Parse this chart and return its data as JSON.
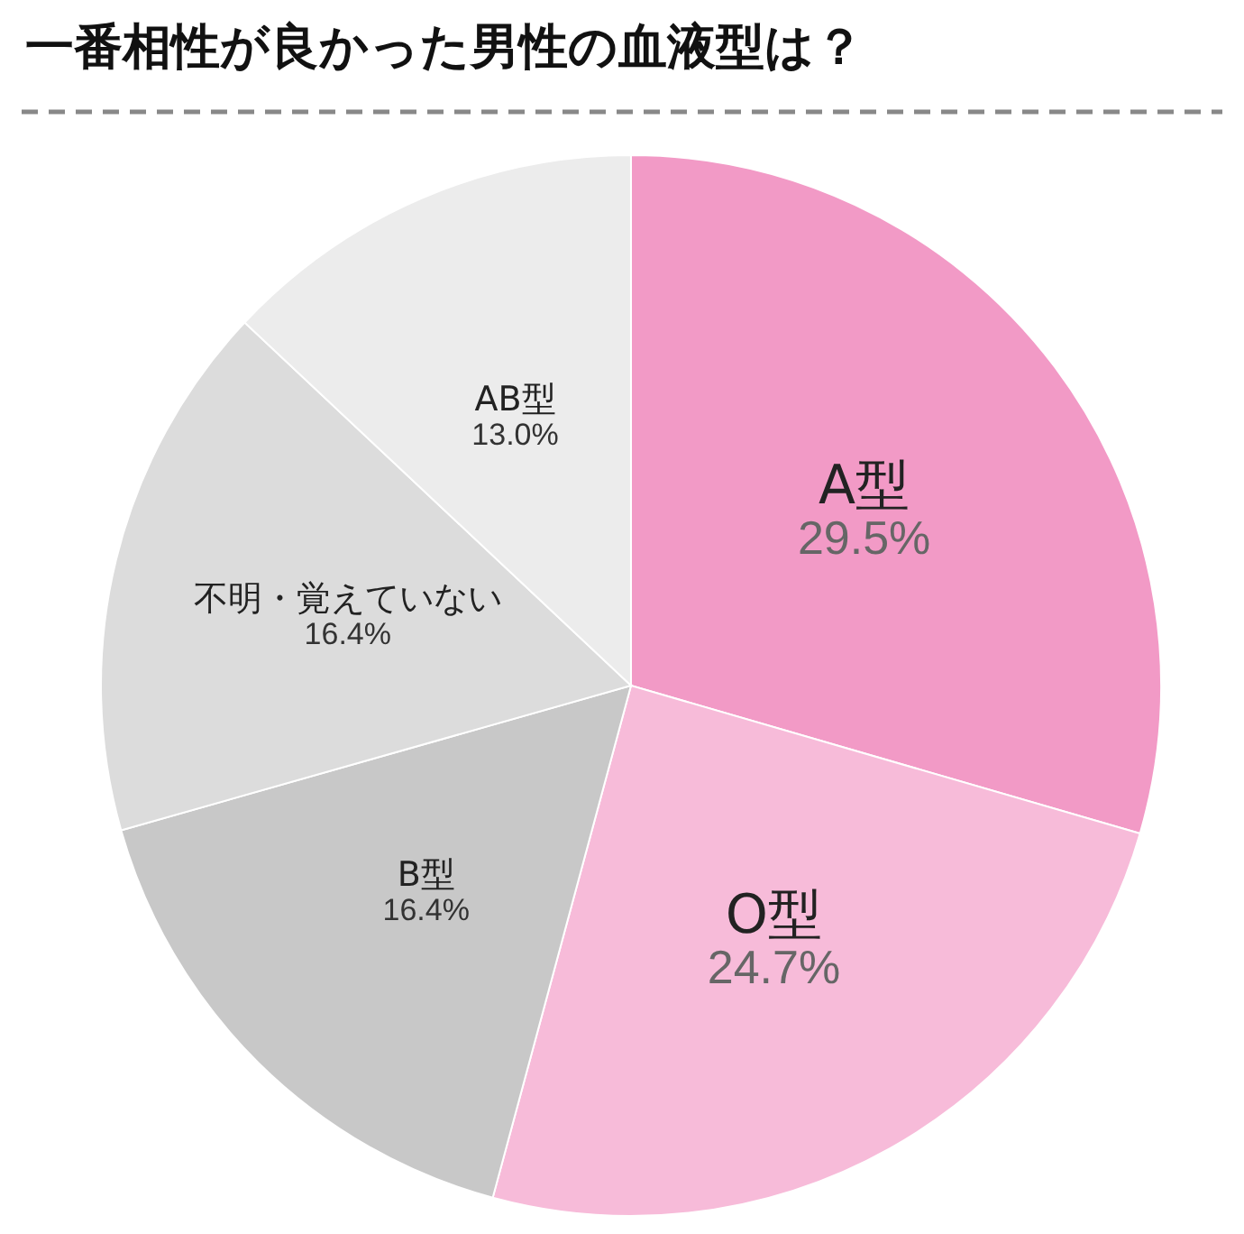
{
  "chart_data": {
    "type": "pie",
    "title": "一番相性が良かった男性の血液型は？",
    "categories": [
      "A型",
      "O型",
      "B型",
      "不明・覚えていない",
      "AB型"
    ],
    "values": [
      29.5,
      24.7,
      16.4,
      16.4,
      13.0
    ],
    "value_labels": [
      "29.5%",
      "24.7%",
      "16.4%",
      "16.4%",
      "13.0%"
    ],
    "colors": [
      "#f29ac6",
      "#f7bbd9",
      "#c8c8c8",
      "#dcdcdc",
      "#ececec"
    ],
    "legend": false
  }
}
